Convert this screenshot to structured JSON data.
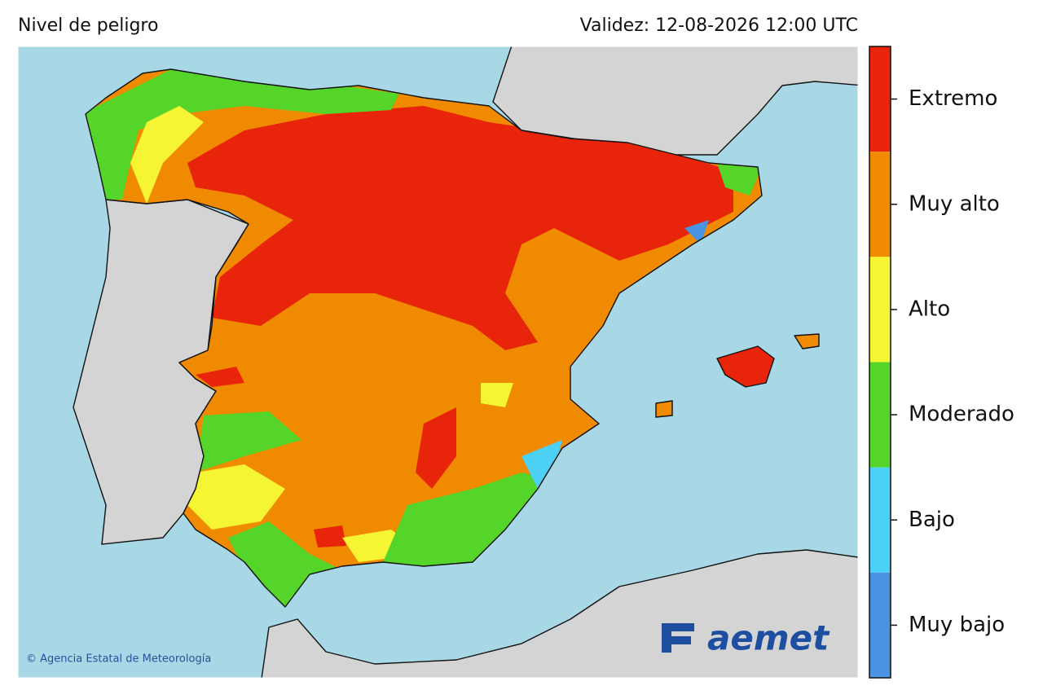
{
  "header": {
    "title": "Nivel de peligro",
    "validity": "Validez: 12-08-2026 12:00 UTC"
  },
  "legend": {
    "levels": [
      {
        "name": "Extremo",
        "color": "#e8250b"
      },
      {
        "name": "Muy alto",
        "color": "#f08a00"
      },
      {
        "name": "Alto",
        "color": "#f5f534"
      },
      {
        "name": "Moderado",
        "color": "#55d42a"
      },
      {
        "name": "Bajo",
        "color": "#4dd0f5"
      },
      {
        "name": "Muy bajo",
        "color": "#4a93e0"
      }
    ]
  },
  "map": {
    "credit": "© Agencia Estatal de Meteorología",
    "logo": "aemet"
  }
}
